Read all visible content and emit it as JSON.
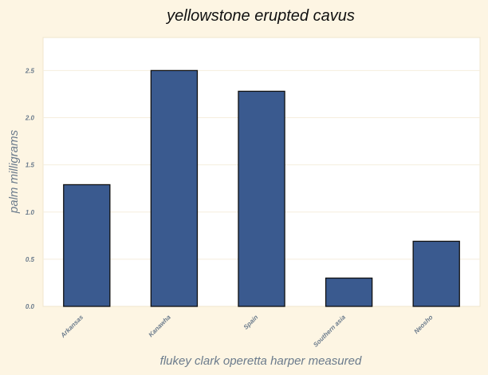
{
  "chart_data": {
    "type": "bar",
    "title": "yellowstone erupted cavus",
    "xlabel": "flukey clark operetta harper measured",
    "ylabel": "palm milligrams",
    "categories": [
      "Arkansas",
      "Kanawha",
      "Spain",
      "Southern asia",
      "Neosho"
    ],
    "values": [
      1.29,
      2.5,
      2.28,
      0.3,
      0.69
    ],
    "ylim": [
      0,
      2.85
    ],
    "yticks": [
      "0.0",
      "0.5",
      "1.0",
      "1.5",
      "2.0",
      "2.5"
    ],
    "grid": true,
    "legend": "none",
    "colors": {
      "bar": "#3a5a8f",
      "bar_edge": "#111111",
      "plot_background": "#ffffff",
      "figure_background": "#fdf5e3",
      "grid": "#f5eedd"
    }
  }
}
